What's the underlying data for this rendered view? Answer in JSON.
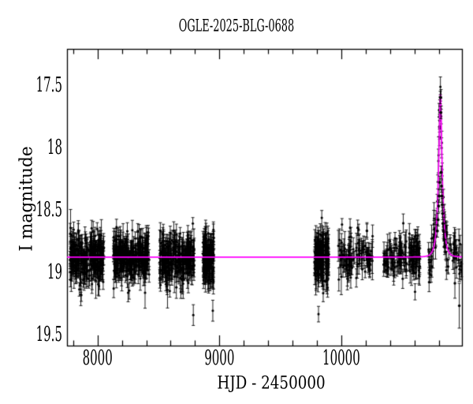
{
  "figure": {
    "background": "#ffffff"
  },
  "chart_data": {
    "type": "scatter",
    "title": "OGLE-2025-BLG-0688",
    "xlabel": "HJD - 2450000",
    "ylabel": "I magnitude",
    "x_axis": {
      "lim": [
        7750,
        10990
      ],
      "major_ticks": [
        8000,
        9000,
        10000
      ],
      "major_tick_labels": [
        "8000",
        "9000",
        "10000"
      ],
      "minor_tick_step": 200
    },
    "y_axis": {
      "lim": [
        17.2,
        19.58
      ],
      "inverted": true,
      "major_ticks": [
        17.5,
        18.0,
        18.5,
        19.0,
        19.5
      ],
      "major_tick_labels": [
        "17.5",
        "18",
        "18.5",
        "19",
        "19.5"
      ],
      "minor_tick_step": 0.1
    },
    "grid": false,
    "legend": null,
    "point_color": "#000000",
    "model_color": "#ff00ff",
    "baseline_mag": 18.87,
    "model": {
      "type": "paczynski",
      "t0": 10813,
      "tE": 30,
      "u0": 0.31,
      "I0": 18.87,
      "peak_mag": 17.56
    },
    "seasons": [
      {
        "hjd_start": 7774,
        "hjd_end": 8052,
        "n": 260,
        "mean_mag": 18.87,
        "sigma": 0.085
      },
      {
        "hjd_start": 8129,
        "hjd_end": 8426,
        "n": 280,
        "mean_mag": 18.87,
        "sigma": 0.085
      },
      {
        "hjd_start": 8510,
        "hjd_end": 8794,
        "n": 260,
        "mean_mag": 18.88,
        "sigma": 0.09
      },
      {
        "hjd_start": 8865,
        "hjd_end": 8955,
        "n": 130,
        "mean_mag": 18.87,
        "sigma": 0.085
      },
      {
        "hjd_start": 9781,
        "hjd_end": 9897,
        "n": 170,
        "mean_mag": 18.88,
        "sigma": 0.1
      },
      {
        "hjd_start": 9974,
        "hjd_end": 10258,
        "n": 110,
        "mean_mag": 18.87,
        "sigma": 0.08
      },
      {
        "hjd_start": 10348,
        "hjd_end": 10535,
        "n": 75,
        "mean_mag": 18.87,
        "sigma": 0.08
      },
      {
        "hjd_start": 10555,
        "hjd_end": 10645,
        "n": 65,
        "mean_mag": 18.87,
        "sigma": 0.085
      },
      {
        "hjd_start": 10710,
        "hjd_end": 10987,
        "n": 95,
        "mean_mag": 18.87,
        "sigma": 0.09,
        "follow_model": true
      }
    ],
    "event_points": [
      [
        10788,
        18.66,
        0.05
      ],
      [
        10794,
        18.57,
        0.05
      ],
      [
        10799,
        18.46,
        0.05
      ],
      [
        10803,
        18.38,
        0.05
      ],
      [
        10807,
        18.27,
        0.05
      ],
      [
        10812,
        17.59,
        0.05
      ],
      [
        10817,
        17.71,
        0.05
      ],
      [
        10819,
        18.19,
        0.05
      ],
      [
        10822,
        18.3,
        0.05
      ],
      [
        10825,
        18.38,
        0.05
      ],
      [
        10828,
        18.45,
        0.05
      ],
      [
        10831,
        18.52,
        0.05
      ],
      [
        10834,
        18.6,
        0.05
      ],
      [
        10838,
        18.66,
        0.06
      ],
      [
        10843,
        18.73,
        0.06
      ],
      [
        10848,
        18.79,
        0.06
      ],
      [
        10855,
        18.83,
        0.06
      ]
    ],
    "outlier_points": [
      [
        10932,
        19.08,
        0.12
      ],
      [
        10968,
        19.26,
        0.18
      ]
    ]
  }
}
